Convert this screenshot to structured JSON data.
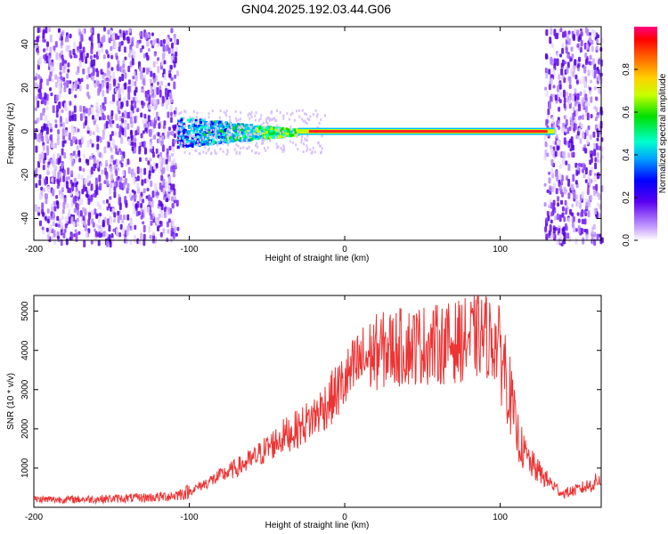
{
  "title": "GN04.2025.192.03.44.G06",
  "chart_data": [
    {
      "type": "heatmap",
      "xlabel": "Height of straight line (km)",
      "ylabel": "Frequency (Hz)",
      "xlim": [
        -200,
        165
      ],
      "ylim": [
        -50,
        48
      ],
      "xticks": [
        -200,
        -100,
        0,
        100
      ],
      "yticks": [
        -40,
        -20,
        0,
        20,
        40
      ],
      "colorbar": {
        "label": "Normalized spectral amplitude",
        "range": [
          0,
          1
        ],
        "ticks": [
          0.0,
          0.2,
          0.4,
          0.6,
          0.8
        ],
        "tick_labels": [
          "0.0",
          "0.2",
          "0.4",
          "0.6",
          "0.8"
        ]
      },
      "features": {
        "noise_regions_km": [
          [
            -200,
            -108
          ],
          [
            128,
            165
          ]
        ],
        "carrier_frequency_hz": 0,
        "carrier_broad_region_km": [
          -108,
          -30
        ],
        "carrier_narrow_region_km": [
          -30,
          135
        ]
      }
    },
    {
      "type": "line",
      "xlabel": "Height of straight line (km)",
      "ylabel": "SNR (10 * v/v)",
      "xlim": [
        -200,
        165
      ],
      "ylim": [
        0,
        5400
      ],
      "xticks": [
        -200,
        -100,
        0,
        100
      ],
      "yticks": [
        1000,
        2000,
        3000,
        4000,
        5000
      ],
      "series": [
        {
          "color": "#ee3333",
          "x": [
            -200,
            -180,
            -160,
            -140,
            -120,
            -110,
            -100,
            -90,
            -80,
            -70,
            -60,
            -50,
            -40,
            -30,
            -20,
            -10,
            0,
            10,
            20,
            30,
            40,
            50,
            60,
            70,
            80,
            90,
            100,
            105,
            110,
            115,
            120,
            130,
            140,
            150,
            160,
            165
          ],
          "values": [
            200,
            200,
            210,
            230,
            260,
            300,
            400,
            600,
            800,
            1000,
            1200,
            1500,
            1800,
            2000,
            2300,
            2700,
            3200,
            3700,
            3950,
            4050,
            4100,
            4150,
            4150,
            4200,
            4300,
            4400,
            4100,
            3200,
            2000,
            1400,
            1100,
            700,
            350,
            450,
            600,
            750
          ]
        }
      ]
    }
  ]
}
